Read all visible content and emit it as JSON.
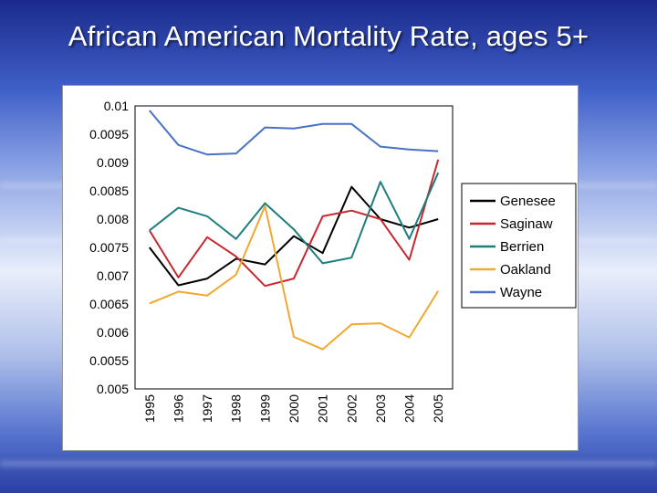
{
  "slide": {
    "title": "African American Mortality Rate, ages 5+"
  },
  "chart_data": {
    "type": "line",
    "title": "",
    "xlabel": "",
    "ylabel": "",
    "x": [
      "1995",
      "1996",
      "1997",
      "1998",
      "1999",
      "2000",
      "2001",
      "2002",
      "2003",
      "2004",
      "2005"
    ],
    "ylim": [
      0.005,
      0.01
    ],
    "y_ticks": [
      "0.01",
      "0.0095",
      "0.009",
      "0.0085",
      "0.008",
      "0.0075",
      "0.007",
      "0.0065",
      "0.006",
      "0.0055",
      "0.005"
    ],
    "legend_position": "right",
    "series": [
      {
        "name": "Genesee",
        "color": "#000000",
        "values": [
          0.0075,
          0.00683,
          0.00695,
          0.0073,
          0.0072,
          0.0077,
          0.0074,
          0.00857,
          0.008,
          0.00785,
          0.008
        ]
      },
      {
        "name": "Saginaw",
        "color": "#c8282d",
        "values": [
          0.0078,
          0.00697,
          0.00768,
          0.00734,
          0.00682,
          0.00695,
          0.00805,
          0.00815,
          0.008,
          0.00728,
          0.00905
        ]
      },
      {
        "name": "Berrien",
        "color": "#1f7d7d",
        "values": [
          0.0078,
          0.0082,
          0.00805,
          0.00765,
          0.00828,
          0.00782,
          0.00722,
          0.00732,
          0.00866,
          0.00765,
          0.00882
        ]
      },
      {
        "name": "Oakland",
        "color": "#f0a830",
        "values": [
          0.00651,
          0.00672,
          0.00665,
          0.00702,
          0.00823,
          0.00592,
          0.0057,
          0.00614,
          0.00616,
          0.00591,
          0.00673
        ]
      },
      {
        "name": "Wayne",
        "color": "#4a72c4",
        "values": [
          0.00992,
          0.00931,
          0.00914,
          0.00916,
          0.00962,
          0.0096,
          0.00968,
          0.00968,
          0.00928,
          0.00923,
          0.0092
        ]
      }
    ]
  }
}
